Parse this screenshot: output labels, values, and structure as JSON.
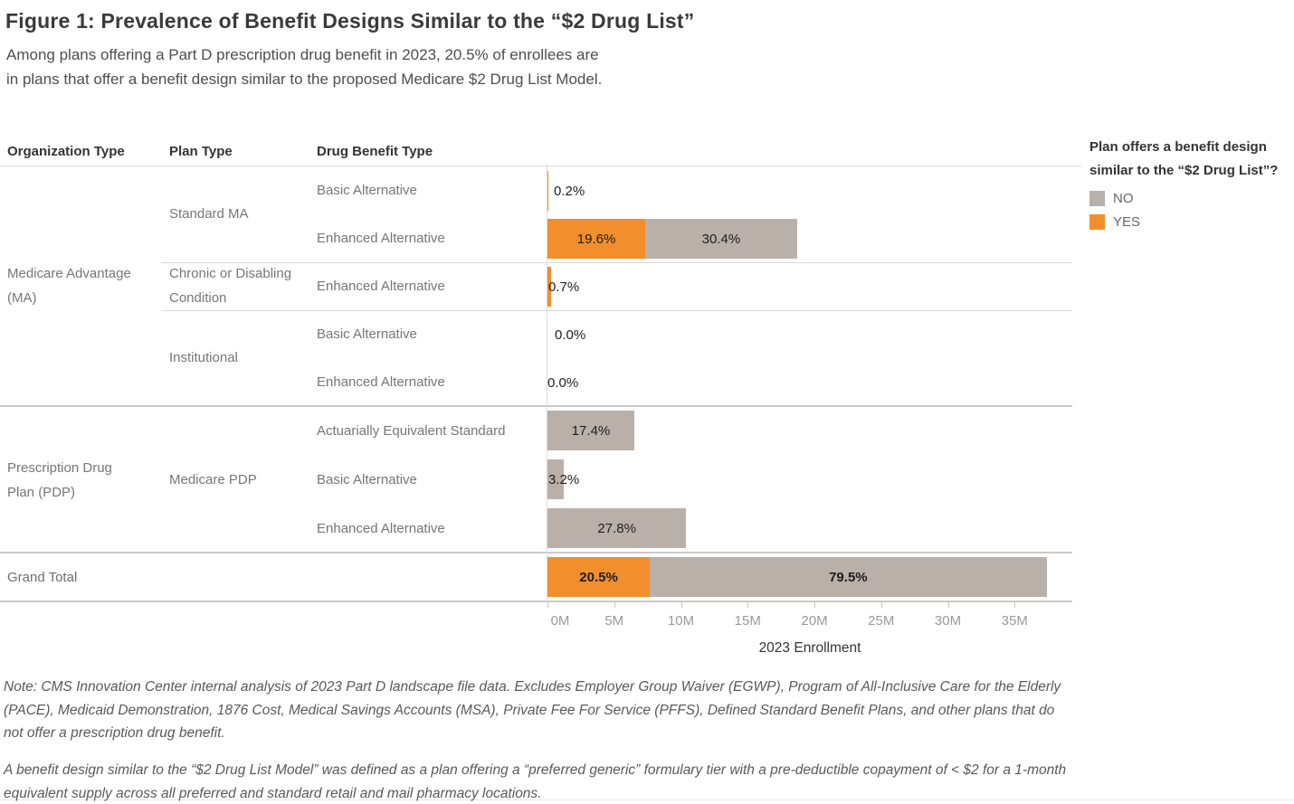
{
  "figure": {
    "title": "Figure 1: Prevalence of Benefit Designs Similar to the “$2 Drug List”",
    "subtitle_line1": "Among plans offering a Part D prescription drug benefit in 2023, 20.5% of enrollees are",
    "subtitle_line2": "in plans that offer a benefit design similar to the proposed Medicare $2 Drug List Model."
  },
  "columns": {
    "org": "Organization Type",
    "plan": "Plan Type",
    "benefit": "Drug Benefit Type"
  },
  "legend": {
    "title_line1": "Plan offers a benefit design",
    "title_line2": "similar to the “$2 Drug List”?",
    "items": [
      {
        "label": "NO",
        "color": "#B9B0AA"
      },
      {
        "label": "YES",
        "color": "#F28E2B"
      }
    ]
  },
  "row_groups": {
    "org_labels": [
      "Medicare Advantage (MA)",
      "Prescription Drug Plan (PDP)"
    ],
    "plan_labels": [
      "Standard MA",
      "Chronic or Disabling Condition",
      "Institutional",
      "Medicare PDP"
    ]
  },
  "chart_data": {
    "type": "bar",
    "orientation": "horizontal-stacked",
    "unit": "2023 enrollment, millions",
    "series_colors": {
      "YES": "#F28E2B",
      "NO": "#B9B0AA"
    },
    "total_enrollment_m_est": 37.4,
    "axis": {
      "ticks": [
        "0M",
        "5M",
        "10M",
        "15M",
        "20M",
        "25M",
        "30M",
        "35M"
      ],
      "tick_values_m": [
        0,
        5,
        10,
        15,
        20,
        25,
        30,
        35
      ],
      "xlabel": "2023 Enrollment",
      "xlim_m": [
        0,
        39.3
      ],
      "grid": false
    },
    "rows": [
      {
        "org": "Medicare Advantage (MA)",
        "plan": "Standard MA",
        "benefit": "Basic Alternative",
        "yes_pct": 0.2,
        "yes_label": "0.2%",
        "yes_m_est": 0.1,
        "no_pct": null,
        "no_label": null
      },
      {
        "org": "Medicare Advantage (MA)",
        "plan": "Standard MA",
        "benefit": "Enhanced Alternative",
        "yes_pct": 19.6,
        "yes_label": "19.6%",
        "yes_m_est": 7.3,
        "no_pct": 30.4,
        "no_label": "30.4%",
        "no_m_est": 11.4
      },
      {
        "org": "Medicare Advantage (MA)",
        "plan": "Chronic or Disabling Condition",
        "benefit": "Enhanced Alternative",
        "yes_pct": 0.7,
        "yes_label": "0.7%",
        "yes_m_est": 0.3,
        "no_pct": null,
        "no_label": null
      },
      {
        "org": "Medicare Advantage (MA)",
        "plan": "Institutional",
        "benefit": "Basic Alternative",
        "yes_pct": 0.0,
        "yes_label": "0.0%",
        "yes_m_est": 0.0,
        "no_pct": null,
        "no_label": null
      },
      {
        "org": "Medicare Advantage (MA)",
        "plan": "Institutional",
        "benefit": "Enhanced Alternative",
        "yes_pct": 0.0,
        "yes_label": "0.0%",
        "yes_m_est": 0.0,
        "no_pct": null,
        "no_label": null
      },
      {
        "org": "Prescription Drug Plan (PDP)",
        "plan": "Medicare PDP",
        "benefit": "Actuarially Equivalent Standard",
        "yes_pct": null,
        "yes_label": null,
        "no_pct": 17.4,
        "no_label": "17.4%",
        "no_m_est": 6.5
      },
      {
        "org": "Prescription Drug Plan (PDP)",
        "plan": "Medicare PDP",
        "benefit": "Basic Alternative",
        "yes_pct": null,
        "yes_label": null,
        "no_pct": 3.2,
        "no_label": "3.2%",
        "no_m_est": 1.2
      },
      {
        "org": "Prescription Drug Plan (PDP)",
        "plan": "Medicare PDP",
        "benefit": "Enhanced Alternative",
        "yes_pct": null,
        "yes_label": null,
        "no_pct": 27.8,
        "no_label": "27.8%",
        "no_m_est": 10.4
      }
    ],
    "grand_total": {
      "label": "Grand Total",
      "yes_pct": 20.5,
      "yes_label": "20.5%",
      "yes_m_est": 7.7,
      "no_pct": 79.5,
      "no_label": "79.5%",
      "no_m_est": 29.7
    }
  },
  "notes": {
    "para1": "Note: CMS Innovation Center internal analysis of 2023 Part D landscape file data. Excludes Employer Group Waiver (EGWP), Program of All-Inclusive Care for the Elderly (PACE), Medicaid Demonstration, 1876 Cost, Medical Savings Accounts (MSA), Private Fee For Service (PFFS), Defined Standard Benefit Plans, and other plans that do not offer a prescription drug benefit.",
    "para2": "A benefit design similar to the “$2 Drug List Model” was defined as a plan offering a “preferred generic” formulary tier with a pre-deductible copayment of < $2 for a 1-month equivalent supply across all preferred and standard retail and mail pharmacy locations."
  }
}
